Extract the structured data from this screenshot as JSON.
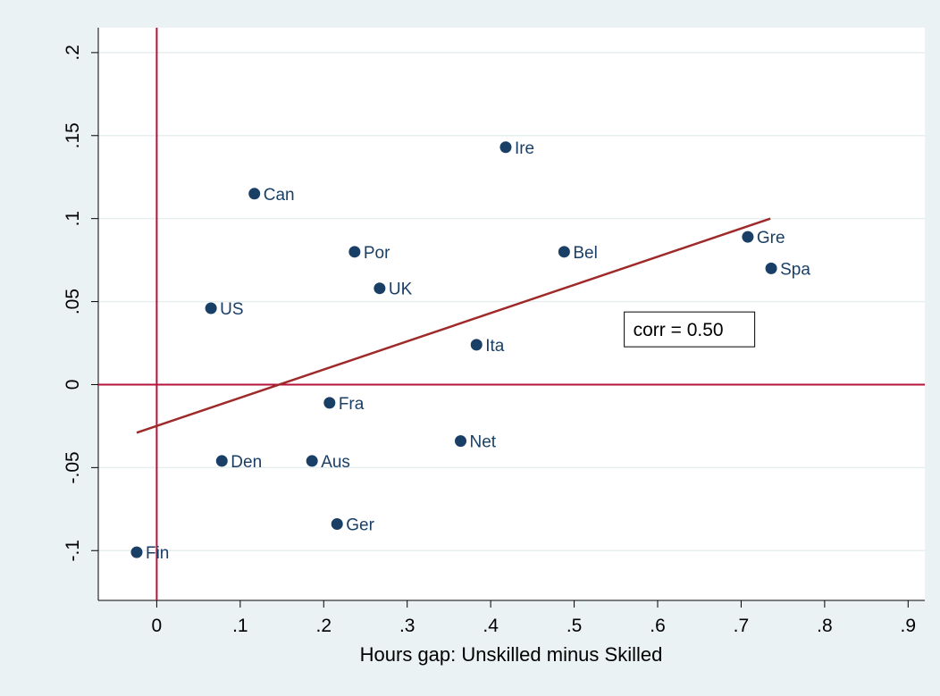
{
  "chart_data": {
    "type": "scatter",
    "xlabel": "Hours gap: Unskilled minus Skilled",
    "ylabel": "",
    "xlim": [
      -0.07,
      0.92
    ],
    "ylim": [
      -0.13,
      0.215
    ],
    "xticks": [
      0,
      0.1,
      0.2,
      0.3,
      0.4,
      0.5,
      0.6,
      0.7,
      0.8,
      0.9
    ],
    "xtick_labels": [
      "0",
      ".1",
      ".2",
      ".3",
      ".4",
      ".5",
      ".6",
      ".7",
      ".8",
      ".9"
    ],
    "yticks": [
      -0.1,
      -0.05,
      0,
      0.05,
      0.1,
      0.15,
      0.2
    ],
    "ytick_labels": [
      "-.1",
      "-.05",
      "0",
      ".05",
      ".1",
      ".15",
      ".2"
    ],
    "grid": true,
    "reference_lines": {
      "x": 0,
      "y": 0,
      "color": "#b5133a"
    },
    "fit_line": {
      "x": [
        -0.024,
        0.735
      ],
      "y": [
        -0.029,
        0.1
      ],
      "color": "#9e2a2a"
    },
    "annotation": {
      "text": "corr = 0.50",
      "x": 0.56,
      "y": 0.033
    },
    "marker_color": "#1a3f66",
    "label_color": "#1a3f66",
    "points": [
      {
        "label": "Ire",
        "x": 0.418,
        "y": 0.143
      },
      {
        "label": "Can",
        "x": 0.117,
        "y": 0.115
      },
      {
        "label": "Por",
        "x": 0.237,
        "y": 0.08
      },
      {
        "label": "Bel",
        "x": 0.488,
        "y": 0.08
      },
      {
        "label": "Gre",
        "x": 0.708,
        "y": 0.089
      },
      {
        "label": "Spa",
        "x": 0.736,
        "y": 0.07
      },
      {
        "label": "UK",
        "x": 0.267,
        "y": 0.058
      },
      {
        "label": "US",
        "x": 0.065,
        "y": 0.046
      },
      {
        "label": "Ita",
        "x": 0.383,
        "y": 0.024
      },
      {
        "label": "Fra",
        "x": 0.207,
        "y": -0.011
      },
      {
        "label": "Net",
        "x": 0.364,
        "y": -0.034
      },
      {
        "label": "Den",
        "x": 0.078,
        "y": -0.046
      },
      {
        "label": "Aus",
        "x": 0.186,
        "y": -0.046
      },
      {
        "label": "Ger",
        "x": 0.216,
        "y": -0.084
      },
      {
        "label": "Fin",
        "x": -0.024,
        "y": -0.101
      }
    ]
  }
}
